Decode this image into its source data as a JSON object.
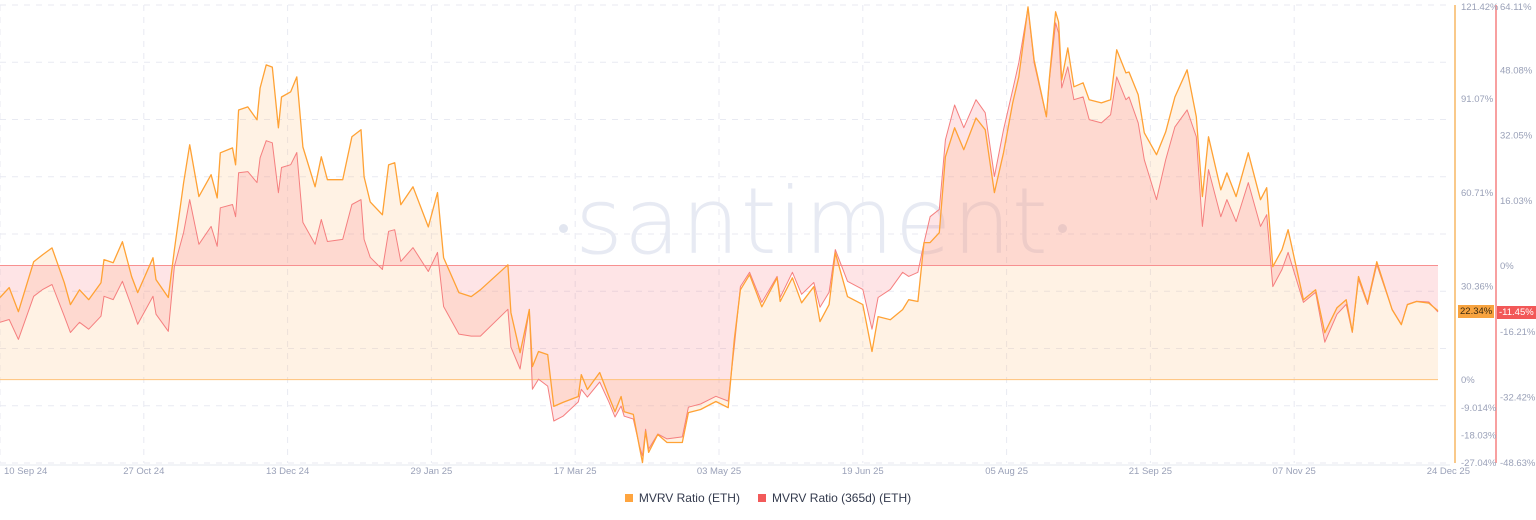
{
  "watermark": "santiment",
  "chart_data": {
    "type": "area",
    "x_range": [
      "2024-09-10",
      "2025-12-24"
    ],
    "x_ticks": [
      "10 Sep 24",
      "27 Oct 24",
      "13 Dec 24",
      "29 Jan 25",
      "17 Mar 25",
      "03 May 25",
      "19 Jun 25",
      "05 Aug 25",
      "21 Sep 25",
      "07 Nov 25",
      "24 Dec 25"
    ],
    "x_tick_dates": [
      "2024-09-10",
      "2024-10-27",
      "2024-12-13",
      "2025-01-29",
      "2025-03-17",
      "2025-05-03",
      "2025-06-19",
      "2025-08-05",
      "2025-09-21",
      "2025-11-07",
      "2025-12-24"
    ],
    "axes": {
      "left": {
        "unit": "%",
        "range": [
          -27.04,
          121.42
        ],
        "ticks": [
          "121.42%",
          "91.07%",
          "60.71%",
          "30.36%",
          "0%",
          "-9.014%",
          "-18.03%",
          "-27.04%"
        ],
        "tick_values": [
          121.42,
          91.07,
          60.71,
          30.36,
          0,
          -9.014,
          -18.03,
          -27.04
        ],
        "color": "#f9c98a"
      },
      "right": {
        "unit": "%",
        "range": [
          -48.63,
          64.11
        ],
        "ticks": [
          "64.11%",
          "48.08%",
          "32.05%",
          "16.03%",
          "0%",
          "-16.21%",
          "-32.42%",
          "-48.63%"
        ],
        "tick_values": [
          64.11,
          48.08,
          32.05,
          16.03,
          0,
          -16.21,
          -32.42,
          -48.63
        ],
        "color": "#f8a0a0"
      }
    },
    "grid": true,
    "legend_position": "bottom",
    "series": [
      {
        "name": "MVRV Ratio (ETH)",
        "axis": "left",
        "color": "#ffa235",
        "last_value_label": "22.34%",
        "last_value": 22.34
      },
      {
        "name": "MVRV Ratio (365d) (ETH)",
        "axis": "right",
        "color": "#f26b6b",
        "last_value_label": "-11.45%",
        "last_value": -11.45
      }
    ],
    "points": [
      [
        "2024-09-10",
        26.6,
        -14.0
      ],
      [
        "2024-09-13",
        29.8,
        -13.3
      ],
      [
        "2024-09-16",
        22.0,
        -18.2
      ],
      [
        "2024-09-21",
        38.2,
        -7.6
      ],
      [
        "2024-09-24",
        40.5,
        -5.9
      ],
      [
        "2024-09-27",
        42.7,
        -4.7
      ],
      [
        "2024-10-01",
        31.4,
        -12.5
      ],
      [
        "2024-10-03",
        24.3,
        -16.5
      ],
      [
        "2024-10-06",
        29.1,
        -14.0
      ],
      [
        "2024-10-09",
        25.9,
        -15.7
      ],
      [
        "2024-10-13",
        31.4,
        -12.5
      ],
      [
        "2024-10-14",
        38.9,
        -7.6
      ],
      [
        "2024-10-17",
        37.9,
        -8.4
      ],
      [
        "2024-10-20",
        44.7,
        -3.9
      ],
      [
        "2024-10-23",
        33.4,
        -10.1
      ],
      [
        "2024-10-25",
        28.2,
        -14.5
      ],
      [
        "2024-10-30",
        39.5,
        -7.6
      ],
      [
        "2024-10-31",
        32.4,
        -12.0
      ],
      [
        "2024-11-04",
        26.6,
        -16.2
      ],
      [
        "2024-11-06",
        42.1,
        -0.2
      ],
      [
        "2024-11-09",
        63.8,
        8.1
      ],
      [
        "2024-11-11",
        76.1,
        16.2
      ],
      [
        "2024-11-14",
        59.3,
        5.2
      ],
      [
        "2024-11-18",
        66.4,
        9.6
      ],
      [
        "2024-11-20",
        58.9,
        4.7
      ],
      [
        "2024-11-21",
        73.5,
        14.2
      ],
      [
        "2024-11-25",
        75.1,
        15.0
      ],
      [
        "2024-11-26",
        69.6,
        12.0
      ],
      [
        "2024-11-27",
        87.4,
        22.8
      ],
      [
        "2024-11-30",
        88.4,
        23.1
      ],
      [
        "2024-12-03",
        84.2,
        20.4
      ],
      [
        "2024-12-04",
        94.5,
        26.5
      ],
      [
        "2024-12-06",
        102.0,
        30.7
      ],
      [
        "2024-12-08",
        101.3,
        30.2
      ],
      [
        "2024-12-10",
        81.6,
        17.9
      ],
      [
        "2024-12-11",
        91.6,
        24.1
      ],
      [
        "2024-12-14",
        93.3,
        24.8
      ],
      [
        "2024-12-16",
        98.1,
        27.8
      ],
      [
        "2024-12-18",
        75.4,
        10.6
      ],
      [
        "2024-12-22",
        62.5,
        5.2
      ],
      [
        "2024-12-24",
        72.2,
        11.3
      ],
      [
        "2024-12-26",
        64.8,
        5.9
      ],
      [
        "2024-12-31",
        64.8,
        6.4
      ],
      [
        "2025-01-03",
        78.7,
        15.0
      ],
      [
        "2025-01-06",
        81.0,
        16.2
      ],
      [
        "2025-01-07",
        65.7,
        6.4
      ],
      [
        "2025-01-09",
        57.6,
        2.0
      ],
      [
        "2025-01-13",
        53.4,
        -1.0
      ],
      [
        "2025-01-15",
        69.6,
        8.4
      ],
      [
        "2025-01-17",
        70.3,
        8.8
      ],
      [
        "2025-01-19",
        56.7,
        1.0
      ],
      [
        "2025-01-23",
        62.5,
        4.4
      ],
      [
        "2025-01-28",
        49.5,
        -1.5
      ],
      [
        "2025-01-31",
        60.6,
        3.2
      ],
      [
        "2025-02-02",
        39.5,
        -10.1
      ],
      [
        "2025-02-07",
        28.2,
        -16.9
      ],
      [
        "2025-02-11",
        26.9,
        -17.4
      ],
      [
        "2025-02-14",
        29.1,
        -17.4
      ],
      [
        "2025-02-23",
        37.2,
        -10.8
      ],
      [
        "2025-02-24",
        21.7,
        -20.1
      ],
      [
        "2025-02-27",
        8.7,
        -25.5
      ],
      [
        "2025-03-02",
        22.7,
        -10.8
      ],
      [
        "2025-03-03",
        4.2,
        -30.5
      ],
      [
        "2025-03-05",
        9.1,
        -28.0
      ],
      [
        "2025-03-08",
        8.1,
        -29.7
      ],
      [
        "2025-03-10",
        -8.7,
        -38.3
      ],
      [
        "2025-03-13",
        -7.4,
        -37.1
      ],
      [
        "2025-03-18",
        -5.5,
        -33.6
      ],
      [
        "2025-03-19",
        1.6,
        -30.5
      ],
      [
        "2025-03-21",
        -3.2,
        -32.4
      ],
      [
        "2025-03-25",
        2.3,
        -28.7
      ],
      [
        "2025-03-28",
        -5.5,
        -33.6
      ],
      [
        "2025-03-30",
        -10.4,
        -37.3
      ],
      [
        "2025-04-01",
        -5.5,
        -34.6
      ],
      [
        "2025-04-02",
        -10.4,
        -37.1
      ],
      [
        "2025-04-05",
        -11.3,
        -37.8
      ],
      [
        "2025-04-07",
        -22.0,
        -44.5
      ],
      [
        "2025-04-08",
        -26.9,
        -46.9
      ],
      [
        "2025-04-09",
        -16.8,
        -40.3
      ],
      [
        "2025-04-10",
        -23.6,
        -45.2
      ],
      [
        "2025-04-13",
        -17.8,
        -41.5
      ],
      [
        "2025-04-16",
        -20.4,
        -42.7
      ],
      [
        "2025-04-21",
        -20.4,
        -42.2
      ],
      [
        "2025-04-23",
        -10.7,
        -34.9
      ],
      [
        "2025-04-27",
        -9.7,
        -34.1
      ],
      [
        "2025-05-02",
        -7.1,
        -32.2
      ],
      [
        "2025-05-06",
        -9.1,
        -33.4
      ],
      [
        "2025-05-08",
        13.0,
        -19.9
      ],
      [
        "2025-05-10",
        29.1,
        -5.2
      ],
      [
        "2025-05-13",
        34.0,
        -1.7
      ],
      [
        "2025-05-17",
        23.6,
        -9.1
      ],
      [
        "2025-05-22",
        33.0,
        -2.7
      ],
      [
        "2025-05-23",
        25.3,
        -7.9
      ],
      [
        "2025-05-27",
        33.0,
        -1.7
      ],
      [
        "2025-05-30",
        24.9,
        -7.1
      ],
      [
        "2025-06-03",
        30.1,
        -4.2
      ],
      [
        "2025-06-05",
        18.8,
        -10.3
      ],
      [
        "2025-06-08",
        24.3,
        -6.6
      ],
      [
        "2025-06-10",
        41.1,
        3.9
      ],
      [
        "2025-06-14",
        26.9,
        -3.9
      ],
      [
        "2025-06-19",
        24.3,
        -5.9
      ],
      [
        "2025-06-22",
        9.1,
        -15.7
      ],
      [
        "2025-06-24",
        20.4,
        -7.9
      ],
      [
        "2025-06-28",
        19.4,
        -5.9
      ],
      [
        "2025-07-02",
        22.7,
        -1.7
      ],
      [
        "2025-07-04",
        25.9,
        -2.7
      ],
      [
        "2025-07-07",
        25.3,
        -1.7
      ],
      [
        "2025-07-09",
        44.4,
        5.6
      ],
      [
        "2025-07-11",
        44.4,
        12.0
      ],
      [
        "2025-07-14",
        47.6,
        13.8
      ],
      [
        "2025-07-16",
        72.2,
        30.9
      ],
      [
        "2025-07-19",
        81.6,
        39.5
      ],
      [
        "2025-07-22",
        74.5,
        33.9
      ],
      [
        "2025-07-26",
        84.8,
        40.8
      ],
      [
        "2025-07-29",
        81.0,
        37.6
      ],
      [
        "2025-08-01",
        60.6,
        21.9
      ],
      [
        "2025-08-04",
        73.5,
        33.4
      ],
      [
        "2025-08-07",
        89.7,
        43.2
      ],
      [
        "2025-08-09",
        98.1,
        49.9
      ],
      [
        "2025-08-12",
        120.8,
        63.4
      ],
      [
        "2025-08-14",
        103.6,
        49.9
      ],
      [
        "2025-08-18",
        85.2,
        36.6
      ],
      [
        "2025-08-19",
        97.8,
        45.7
      ],
      [
        "2025-08-21",
        119.2,
        59.7
      ],
      [
        "2025-08-22",
        115.9,
        57.2
      ],
      [
        "2025-08-23",
        97.1,
        43.7
      ],
      [
        "2025-08-25",
        107.5,
        48.9
      ],
      [
        "2025-08-27",
        94.9,
        40.8
      ],
      [
        "2025-08-30",
        96.2,
        41.5
      ],
      [
        "2025-09-01",
        90.7,
        35.9
      ],
      [
        "2025-09-05",
        89.7,
        35.1
      ],
      [
        "2025-09-08",
        90.7,
        37.1
      ],
      [
        "2025-09-10",
        106.9,
        46.4
      ],
      [
        "2025-09-13",
        99.4,
        40.8
      ],
      [
        "2025-09-14",
        99.7,
        41.5
      ],
      [
        "2025-09-17",
        92.3,
        35.1
      ],
      [
        "2025-09-19",
        80.0,
        26.0
      ],
      [
        "2025-09-23",
        72.9,
        16.2
      ],
      [
        "2025-09-26",
        80.3,
        26.0
      ],
      [
        "2025-09-29",
        91.6,
        34.1
      ],
      [
        "2025-10-03",
        100.4,
        38.3
      ],
      [
        "2025-10-06",
        85.2,
        31.7
      ],
      [
        "2025-10-08",
        59.3,
        9.6
      ],
      [
        "2025-10-10",
        78.7,
        23.6
      ],
      [
        "2025-10-14",
        61.5,
        12.0
      ],
      [
        "2025-10-16",
        67.0,
        16.2
      ],
      [
        "2025-10-19",
        59.3,
        10.8
      ],
      [
        "2025-10-23",
        73.5,
        20.4
      ],
      [
        "2025-10-27",
        58.3,
        9.6
      ],
      [
        "2025-10-29",
        62.2,
        12.5
      ],
      [
        "2025-10-31",
        36.6,
        -5.2
      ],
      [
        "2025-11-03",
        42.1,
        -1.0
      ],
      [
        "2025-11-05",
        48.6,
        3.2
      ],
      [
        "2025-11-10",
        25.9,
        -9.1
      ],
      [
        "2025-11-14",
        29.1,
        -6.6
      ],
      [
        "2025-11-17",
        15.2,
        -18.9
      ],
      [
        "2025-11-21",
        23.3,
        -12.0
      ],
      [
        "2025-11-24",
        25.9,
        -9.6
      ],
      [
        "2025-11-26",
        15.5,
        -16.5
      ],
      [
        "2025-11-28",
        33.4,
        -3.4
      ],
      [
        "2025-12-01",
        24.9,
        -9.6
      ],
      [
        "2025-12-04",
        38.2,
        0.2
      ],
      [
        "2025-12-09",
        22.7,
        -10.8
      ],
      [
        "2025-12-12",
        17.8,
        -14.5
      ],
      [
        "2025-12-14",
        24.3,
        -9.6
      ],
      [
        "2025-12-17",
        25.3,
        -8.8
      ],
      [
        "2025-12-21",
        24.8,
        -9.0
      ],
      [
        "2025-12-24",
        22.34,
        -11.45
      ]
    ]
  }
}
